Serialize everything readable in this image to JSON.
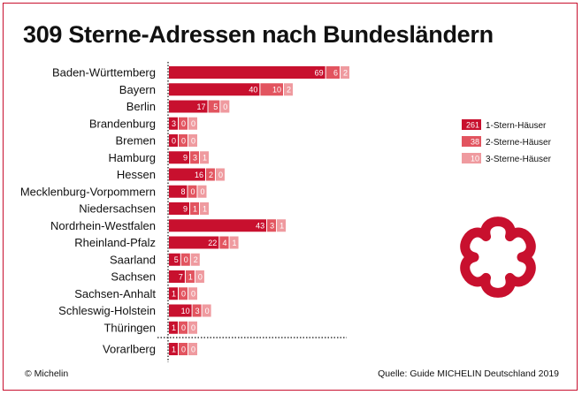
{
  "title": "309 Sterne-Adressen nach Bundesländern",
  "copyright": "© Michelin",
  "source": "Quelle: Guide MICHELIN Deutschland 2019",
  "colors": {
    "one": "#c8102e",
    "two": "#e2545f",
    "three": "#ef9a9f",
    "frame": "#c8102e"
  },
  "legend": [
    {
      "count": "261",
      "label": "1-Stern-Häuser",
      "color": "#c8102e"
    },
    {
      "count": "38",
      "label": "2-Sterne-Häuser",
      "color": "#e2545f"
    },
    {
      "count": "10",
      "label": "3-Sterne-Häuser",
      "color": "#ef9a9f"
    }
  ],
  "logo_icon": "michelin-star-icon",
  "chart_data": {
    "type": "bar",
    "orientation": "horizontal",
    "stacked": true,
    "title": "309 Sterne-Adressen nach Bundesländern",
    "categories": [
      "Baden-Württemberg",
      "Bayern",
      "Berlin",
      "Brandenburg",
      "Bremen",
      "Hamburg",
      "Hessen",
      "Mecklenburg-Vorpommern",
      "Niedersachsen",
      "Nordrhein-Westfalen",
      "Rheinland-Pfalz",
      "Saarland",
      "Sachsen",
      "Sachsen-Anhalt",
      "Schleswig-Holstein",
      "Thüringen",
      "Vorarlberg"
    ],
    "series": [
      {
        "name": "1-Stern-Häuser",
        "values": [
          69,
          40,
          17,
          3,
          0,
          9,
          16,
          8,
          9,
          43,
          22,
          5,
          7,
          1,
          10,
          1,
          1
        ]
      },
      {
        "name": "2-Sterne-Häuser",
        "values": [
          6,
          10,
          5,
          0,
          0,
          3,
          2,
          0,
          1,
          3,
          4,
          0,
          1,
          0,
          3,
          0,
          0
        ]
      },
      {
        "name": "3-Sterne-Häuser",
        "values": [
          2,
          2,
          0,
          0,
          0,
          1,
          0,
          0,
          1,
          1,
          1,
          2,
          0,
          0,
          0,
          0,
          0
        ]
      }
    ],
    "legend_position": "right",
    "grid": false
  }
}
